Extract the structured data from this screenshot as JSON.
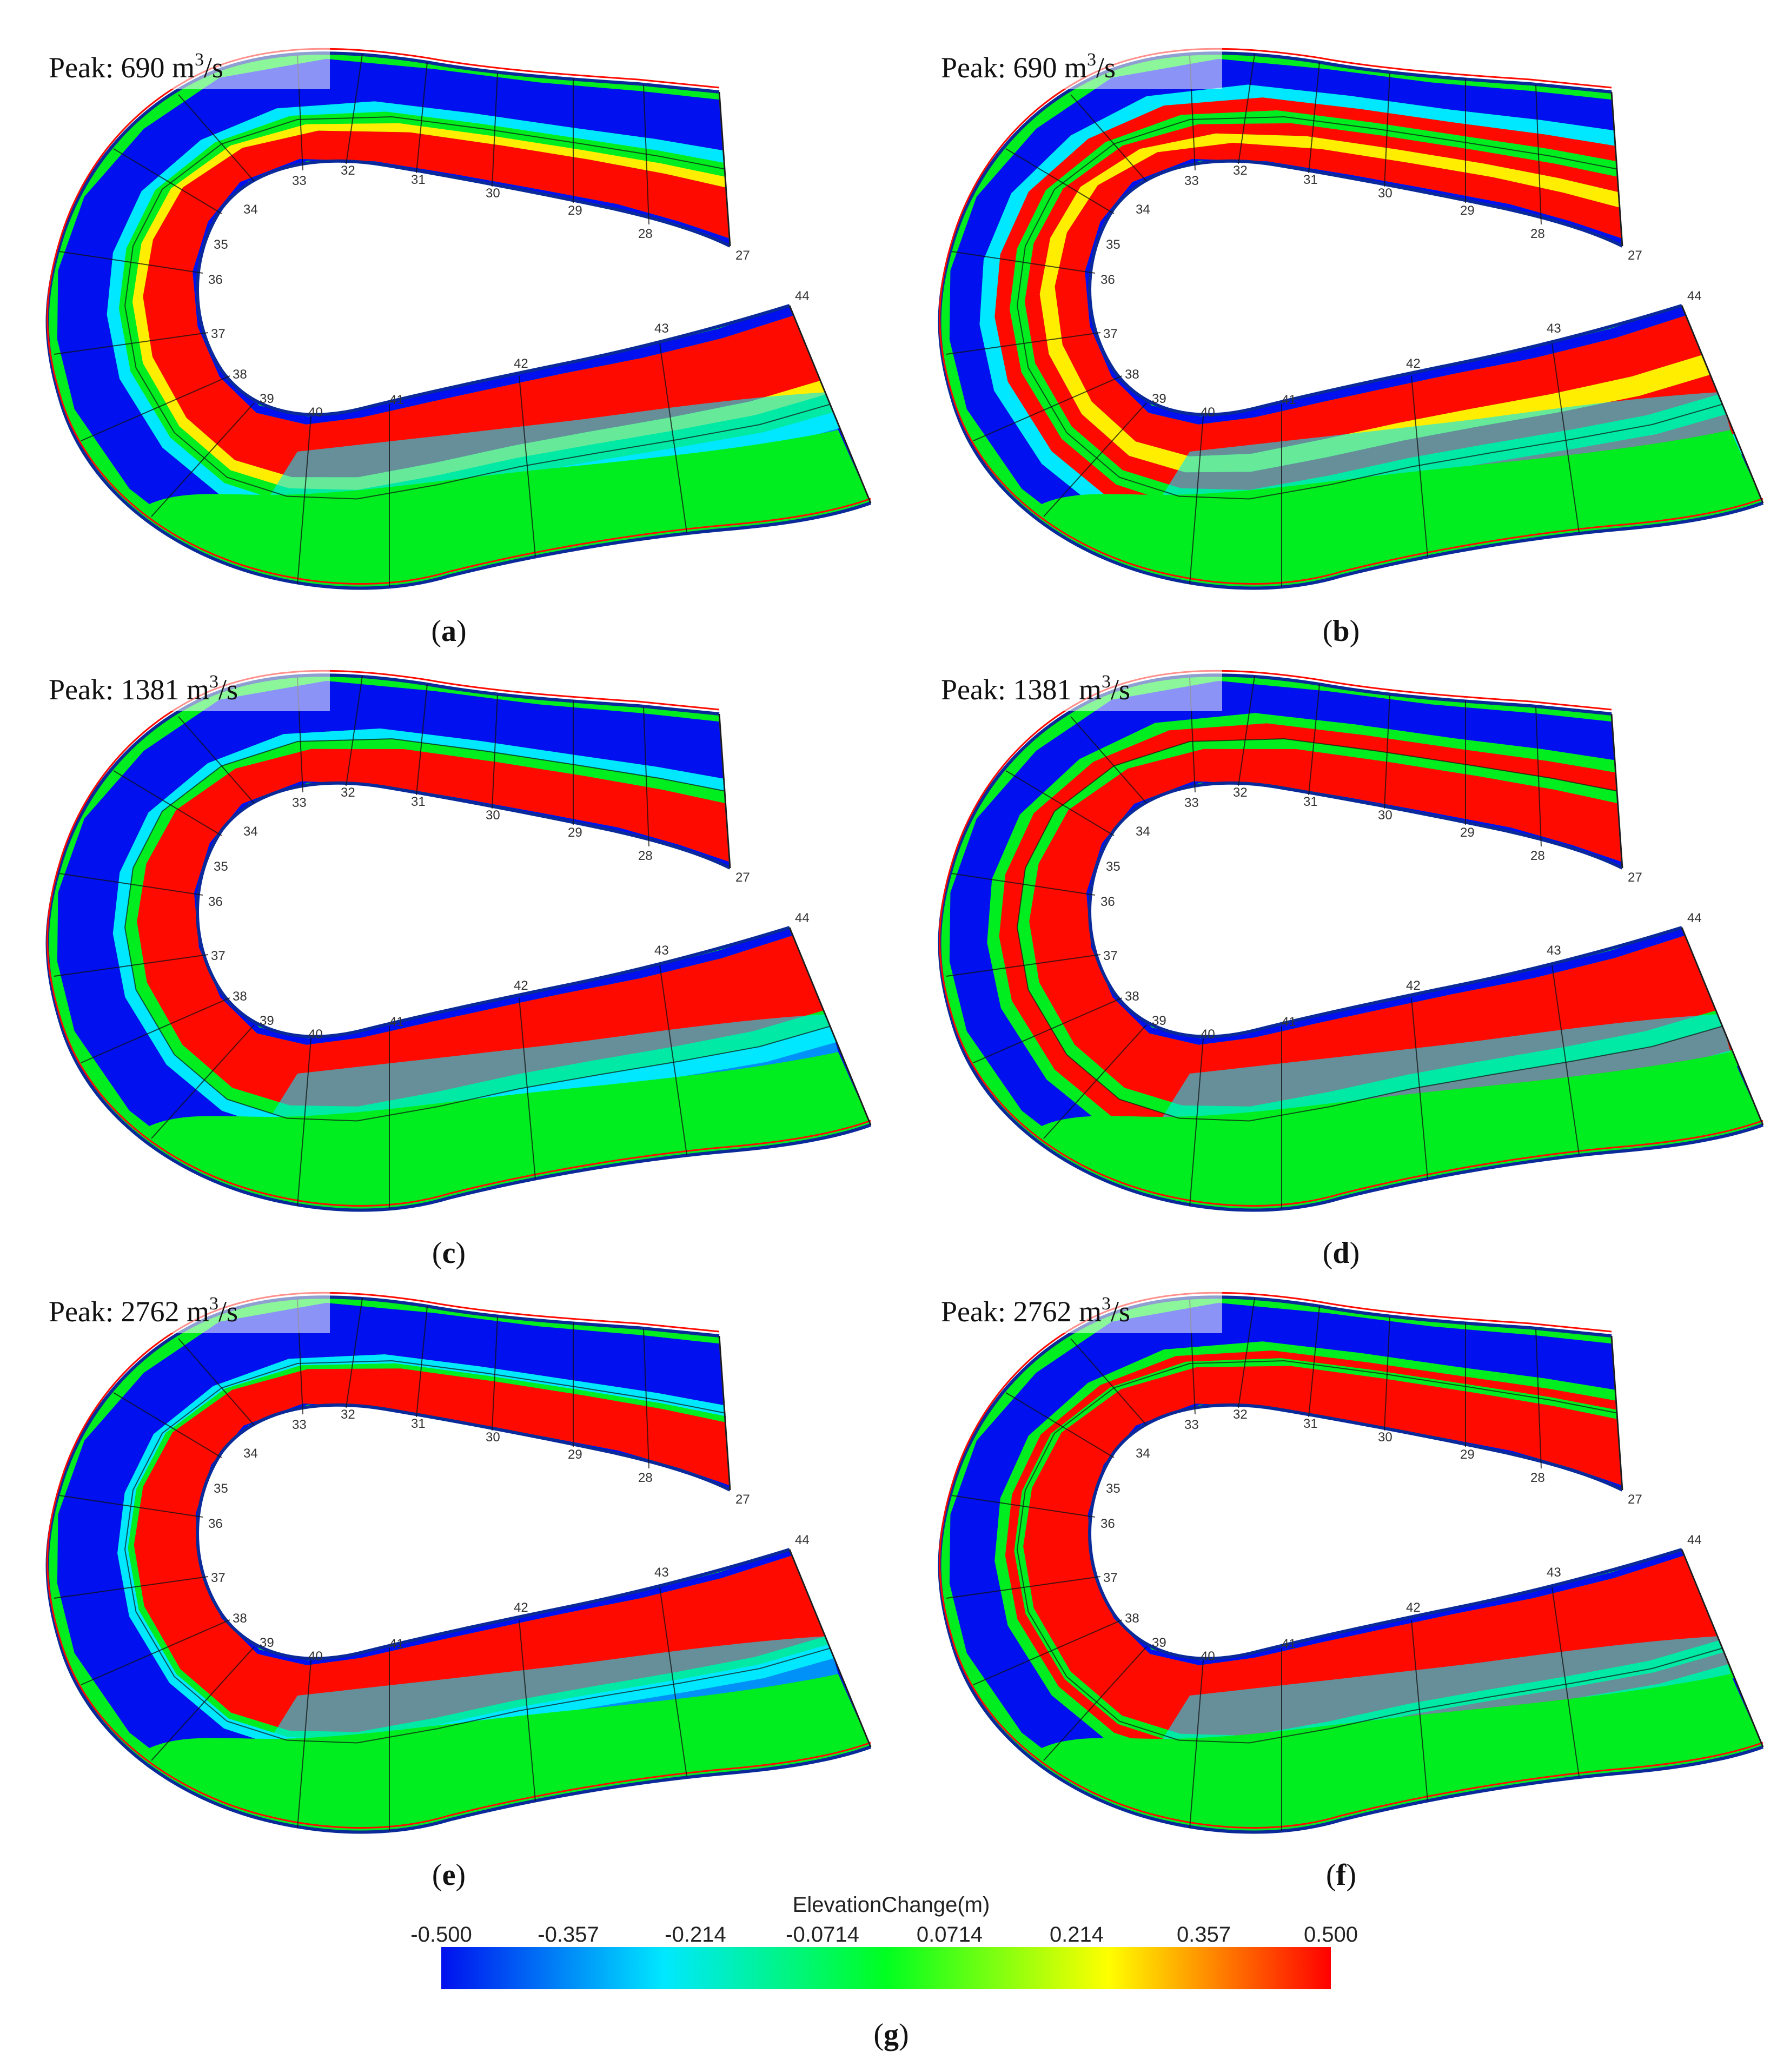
{
  "panels": [
    {
      "id": "a",
      "label_letter": "a",
      "peak_value": "690",
      "variant": 0
    },
    {
      "id": "b",
      "label_letter": "b",
      "peak_value": "690",
      "variant": 1
    },
    {
      "id": "c",
      "label_letter": "c",
      "peak_value": "1381",
      "variant": 2
    },
    {
      "id": "d",
      "label_letter": "d",
      "peak_value": "1381",
      "variant": 3
    },
    {
      "id": "e",
      "label_letter": "e",
      "peak_value": "2762",
      "variant": 4
    },
    {
      "id": "f",
      "label_letter": "f",
      "peak_value": "2762",
      "variant": 5
    }
  ],
  "peak_prefix": "Peak: ",
  "peak_unit_base": "m",
  "peak_unit_exp": "3",
  "peak_unit_tail": "/s",
  "cross_sections": [
    "27",
    "28",
    "29",
    "30",
    "31",
    "32",
    "33",
    "34",
    "35",
    "36",
    "37",
    "38",
    "39",
    "40",
    "41",
    "42",
    "43",
    "44"
  ],
  "colorbar": {
    "title": "ElevationChange(m)",
    "ticks": [
      "-0.500",
      "-0.357",
      "-0.214",
      "-0.0714",
      "0.0714",
      "0.214",
      "0.357",
      "0.500"
    ],
    "label_letter": "g",
    "colors": [
      "#0010ee",
      "#00e8ff",
      "#00ff20",
      "#ffff00",
      "#ff0000"
    ]
  },
  "colors": {
    "erosion": "#0010ee",
    "neutral": "#00ee20",
    "deposition": "#ff0a00",
    "cyan": "#00e8ff",
    "yellow": "#ffee00"
  }
}
